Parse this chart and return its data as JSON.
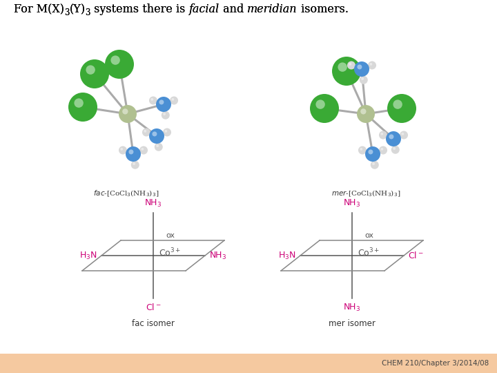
{
  "title_normal": "For M(X)",
  "title_sub1": "3",
  "title_mid": "(Y)",
  "title_sub2": "3",
  "title_pre_italic": " systems there is ",
  "title_italic1": "facial",
  "title_and": " and ",
  "title_italic2": "meridian",
  "title_end": " isomers.",
  "footer_text": "CHEM 210/Chapter 3/2014/08",
  "footer_bg": "#f5c9a0",
  "bg_color": "#ffffff",
  "fac_mol_label": "fac-[CoCl",
  "mer_mol_label": "mer-[CoCl",
  "fac_isomer_label": "fac isomer",
  "mer_isomer_label": "mer isomer",
  "magenta": "#cc0077",
  "line_color": "#555555",
  "para_color": "#888888",
  "green_cl": "#3aaa35",
  "blue_nh3": "#4a8fd4",
  "gray_co": "#b0c090",
  "white_h": "#d8d8d8",
  "title_fontsize": 11.5,
  "label_fontsize": 8.0,
  "diagram_fontsize": 9.0,
  "footer_fontsize": 7.5
}
